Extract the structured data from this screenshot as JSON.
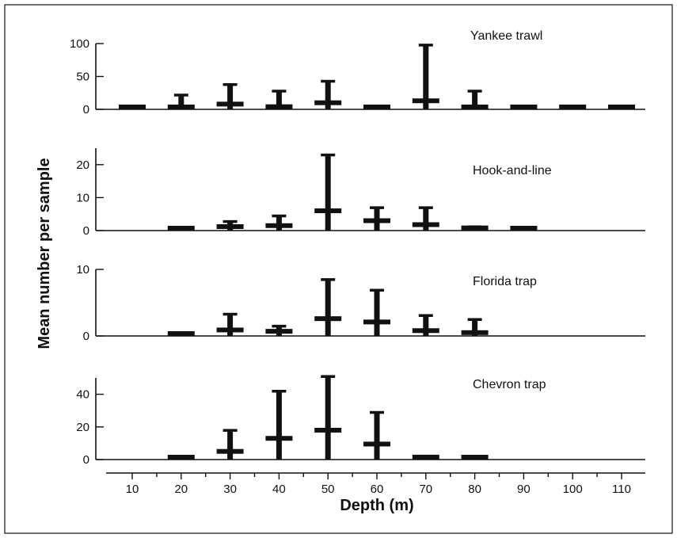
{
  "chart_data": {
    "type": "bar",
    "x": [
      10,
      20,
      30,
      40,
      50,
      60,
      70,
      80,
      90,
      100,
      110
    ],
    "xlabel": "Depth (m)",
    "ylabel": "Mean number per sample",
    "colors": {
      "ink": "#111111",
      "background": "#ffffff"
    },
    "panels": [
      {
        "name": "Yankee trawl",
        "yticks": [
          0,
          50,
          100
        ],
        "ylim": [
          0,
          100
        ],
        "mean": [
          0.5,
          2,
          8,
          4,
          10,
          1,
          13,
          3,
          0.5,
          2,
          0.5
        ],
        "upper": [
          null,
          22,
          38,
          28,
          43,
          null,
          98,
          28,
          null,
          null,
          null
        ]
      },
      {
        "name": "Hook-and-line",
        "yticks": [
          0,
          10,
          20
        ],
        "ylim": [
          0,
          25
        ],
        "mean": [
          null,
          0.3,
          1.2,
          1.5,
          6,
          3,
          1.8,
          0.8,
          0.2,
          null,
          null
        ],
        "upper": [
          null,
          null,
          2.8,
          4.5,
          23,
          7,
          7,
          1.2,
          null,
          null,
          null
        ]
      },
      {
        "name": "Florida trap",
        "yticks": [
          0,
          10
        ],
        "ylim": [
          0,
          10
        ],
        "mean": [
          null,
          0.3,
          0.9,
          0.7,
          2.6,
          2.1,
          0.8,
          0.5,
          null,
          null,
          null
        ],
        "upper": [
          null,
          null,
          3.3,
          1.5,
          8.5,
          6.9,
          3.1,
          2.5,
          null,
          null,
          null
        ]
      },
      {
        "name": "Chevron trap",
        "yticks": [
          0,
          20,
          40
        ],
        "ylim": [
          0,
          50
        ],
        "mean": [
          null,
          1,
          5,
          13,
          18,
          9.5,
          1.5,
          0.5,
          null,
          null,
          null
        ],
        "upper": [
          null,
          null,
          18,
          42,
          51,
          29,
          null,
          null,
          null,
          null,
          null
        ]
      }
    ]
  }
}
